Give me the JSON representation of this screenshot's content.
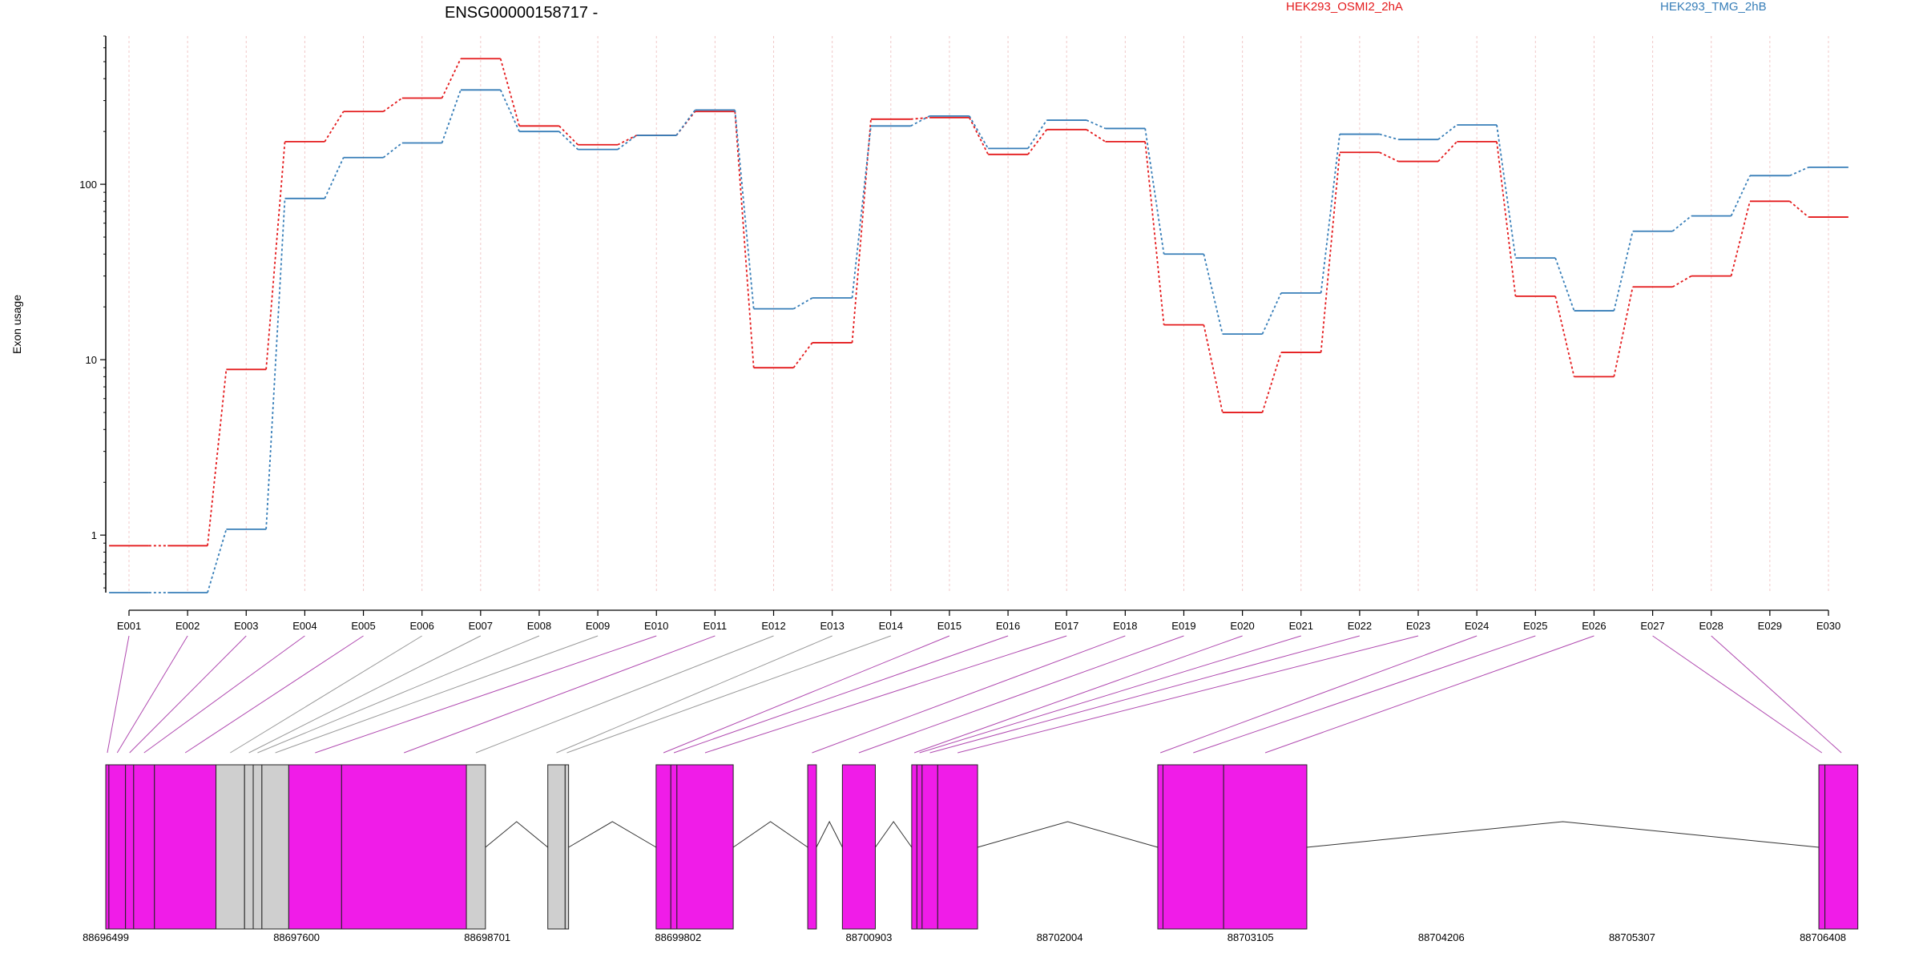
{
  "chart_data": {
    "type": "line",
    "title": "ENSG00000158717 -",
    "ylabel": "Exon usage",
    "yscale": "log",
    "ylim": [
      0.47,
      700
    ],
    "yticks": [
      1,
      10,
      100
    ],
    "ytick_labels": [
      "1",
      "10",
      "100"
    ],
    "grid": "vertical dashed at each exon",
    "legend_position": "top",
    "categories": [
      "E001",
      "E002",
      "E003",
      "E004",
      "E005",
      "E006",
      "E007",
      "E008",
      "E009",
      "E010",
      "E011",
      "E012",
      "E013",
      "E014",
      "E015",
      "E016",
      "E017",
      "E018",
      "E019",
      "E020",
      "E021",
      "E022",
      "E023",
      "E024",
      "E025",
      "E026",
      "E027",
      "E028",
      "E029",
      "E030"
    ],
    "series": [
      {
        "name": "HEK293_OSMI2_2hA",
        "color": "#e41a1c",
        "values": [
          0.87,
          0.87,
          8.8,
          175,
          260,
          310,
          520,
          215,
          168,
          190,
          260,
          9,
          12.5,
          235,
          240,
          148,
          205,
          175,
          15.8,
          5,
          11,
          152,
          135,
          175,
          23,
          8,
          26,
          30,
          80,
          65
        ]
      },
      {
        "name": "HEK293_TMG_2hB",
        "color": "#377eb8",
        "values": [
          0.47,
          0.47,
          1.08,
          83,
          142,
          172,
          345,
          200,
          158,
          190,
          265,
          19.5,
          22.5,
          215,
          245,
          160,
          232,
          208,
          40,
          14,
          24,
          193,
          180,
          218,
          38,
          19,
          54,
          66,
          112,
          125
        ]
      }
    ],
    "gene_model": {
      "coordinate_labels": [
        "88696499",
        "88697600",
        "88698701",
        "88699802",
        "88700903",
        "88702004",
        "88703105",
        "88704206",
        "88705307",
        "88706408"
      ],
      "exon_blocks": [
        {
          "start": 88696499,
          "end": 88696517,
          "type": "tested"
        },
        {
          "start": 88696517,
          "end": 88696613,
          "type": "tested"
        },
        {
          "start": 88696613,
          "end": 88696660,
          "type": "tested"
        },
        {
          "start": 88696660,
          "end": 88696780,
          "type": "tested"
        },
        {
          "start": 88696780,
          "end": 88697135,
          "type": "tested"
        },
        {
          "start": 88697135,
          "end": 88697300,
          "type": "untested"
        },
        {
          "start": 88697300,
          "end": 88697350,
          "type": "untested"
        },
        {
          "start": 88697350,
          "end": 88697400,
          "type": "untested"
        },
        {
          "start": 88697400,
          "end": 88697555,
          "type": "untested"
        },
        {
          "start": 88697555,
          "end": 88697860,
          "type": "tested"
        },
        {
          "start": 88697860,
          "end": 88698580,
          "type": "tested"
        },
        {
          "start": 88698580,
          "end": 88698690,
          "type": "untested"
        },
        {
          "start": 88699050,
          "end": 88699150,
          "type": "untested"
        },
        {
          "start": 88699150,
          "end": 88699170,
          "type": "untested"
        },
        {
          "start": 88699675,
          "end": 88699760,
          "type": "tested"
        },
        {
          "start": 88699760,
          "end": 88699795,
          "type": "tested"
        },
        {
          "start": 88699795,
          "end": 88700120,
          "type": "tested"
        },
        {
          "start": 88700550,
          "end": 88700600,
          "type": "tested"
        },
        {
          "start": 88700750,
          "end": 88700940,
          "type": "tested"
        },
        {
          "start": 88701150,
          "end": 88701180,
          "type": "tested"
        },
        {
          "start": 88701180,
          "end": 88701210,
          "type": "tested"
        },
        {
          "start": 88701210,
          "end": 88701300,
          "type": "tested"
        },
        {
          "start": 88701300,
          "end": 88701530,
          "type": "tested"
        },
        {
          "start": 88702570,
          "end": 88702600,
          "type": "tested"
        },
        {
          "start": 88702600,
          "end": 88702950,
          "type": "tested"
        },
        {
          "start": 88702950,
          "end": 88703430,
          "type": "tested"
        },
        {
          "start": 88706385,
          "end": 88706420,
          "type": "tested"
        },
        {
          "start": 88706420,
          "end": 88706610,
          "type": "tested"
        }
      ]
    }
  },
  "colors": {
    "tested_exon": "#f01ce8",
    "untested_exon": "#cfcfcf",
    "connector_tested": "#b04ab0",
    "connector_untested": "#9a9a9a",
    "grid": "#f0c8c8"
  }
}
